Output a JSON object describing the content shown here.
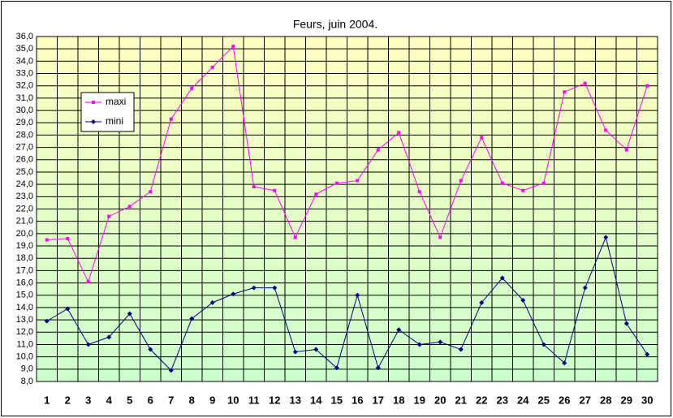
{
  "chart_data": {
    "type": "line",
    "title": "Feurs, juin 2004.",
    "categories": [
      "1",
      "2",
      "3",
      "4",
      "5",
      "6",
      "7",
      "8",
      "9",
      "10",
      "11",
      "12",
      "13",
      "14",
      "15",
      "16",
      "17",
      "18",
      "19",
      "20",
      "21",
      "22",
      "23",
      "24",
      "25",
      "26",
      "27",
      "28",
      "29",
      "30"
    ],
    "series": [
      {
        "name": "maxi",
        "color": "#ff00ff",
        "values": [
          19.5,
          19.6,
          16.1,
          21.4,
          22.2,
          23.4,
          29.3,
          31.8,
          33.5,
          35.2,
          23.8,
          23.5,
          19.7,
          23.2,
          24.1,
          24.3,
          26.8,
          28.2,
          23.4,
          19.7,
          24.3,
          27.8,
          24.1,
          23.5,
          24.1,
          31.5,
          32.2,
          28.4,
          26.8,
          32.0
        ]
      },
      {
        "name": "mini",
        "color": "#000080",
        "values": [
          12.9,
          13.9,
          11.0,
          11.6,
          13.5,
          10.6,
          8.9,
          13.1,
          14.4,
          15.1,
          15.6,
          15.6,
          10.4,
          10.6,
          9.1,
          15.0,
          9.1,
          12.2,
          11.0,
          11.2,
          10.6,
          14.4,
          16.4,
          14.6,
          11.0,
          9.5,
          15.6,
          19.7,
          12.7,
          10.2
        ]
      }
    ],
    "ylim": [
      8,
      36
    ],
    "yticks": [
      {
        "value": 8,
        "label": "8,0"
      },
      {
        "value": 9,
        "label": "9,0"
      },
      {
        "value": 10,
        "label": "10,0"
      },
      {
        "value": 11,
        "label": "11,0"
      },
      {
        "value": 12,
        "label": "12,0"
      },
      {
        "value": 13,
        "label": "13,0"
      },
      {
        "value": 14,
        "label": "14,0"
      },
      {
        "value": 15,
        "label": "15,0"
      },
      {
        "value": 16,
        "label": "16,0"
      },
      {
        "value": 17,
        "label": "17,0"
      },
      {
        "value": 18,
        "label": "18,0"
      },
      {
        "value": 19,
        "label": "19,0"
      },
      {
        "value": 20,
        "label": "20,0"
      },
      {
        "value": 21,
        "label": "21,0"
      },
      {
        "value": 22,
        "label": "22,0"
      },
      {
        "value": 23,
        "label": "23,0"
      },
      {
        "value": 24,
        "label": "24,0"
      },
      {
        "value": 25,
        "label": "25,0"
      },
      {
        "value": 26,
        "label": "26,0"
      },
      {
        "value": 27,
        "label": "27,0"
      },
      {
        "value": 28,
        "label": "28,0"
      },
      {
        "value": 29,
        "label": "29,0"
      },
      {
        "value": 30,
        "label": "30,0"
      },
      {
        "value": 31,
        "label": "31,0"
      },
      {
        "value": 32,
        "label": "32,0"
      },
      {
        "value": 33,
        "label": "33,0"
      },
      {
        "value": 34,
        "label": "34,0"
      },
      {
        "value": 35,
        "label": "35,0"
      },
      {
        "value": 36,
        "label": "36,0"
      }
    ],
    "grid": true,
    "legend": "upper left"
  }
}
